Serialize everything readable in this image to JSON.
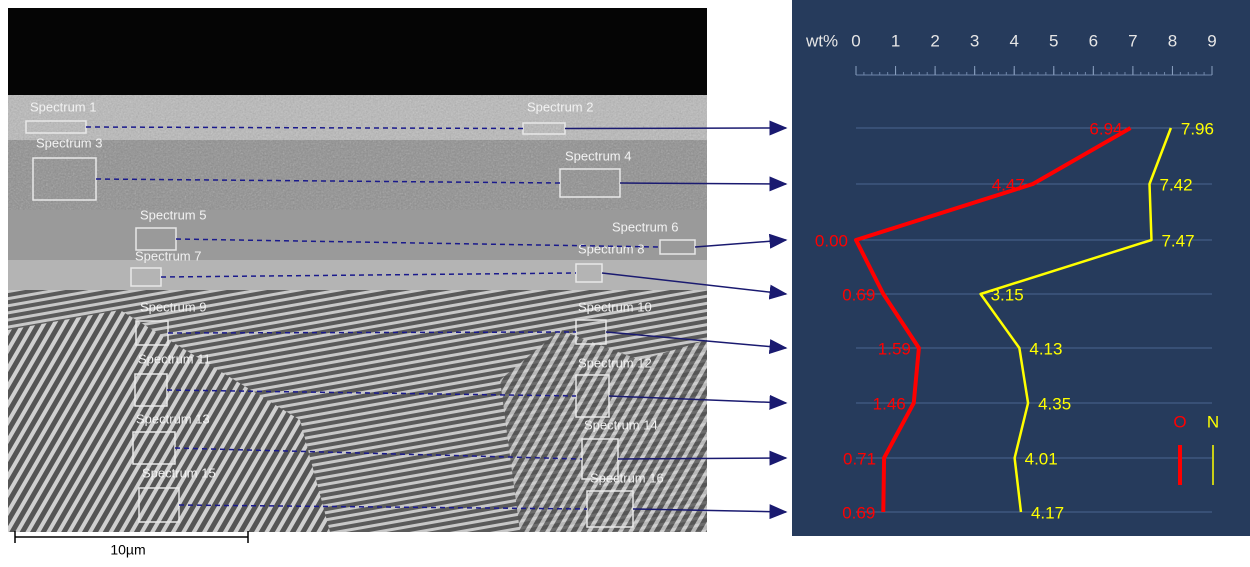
{
  "image": {
    "spectra": [
      "Spectrum 1",
      "Spectrum 2",
      "Spectrum 3",
      "Spectrum 4",
      "Spectrum 5",
      "Spectrum 6",
      "Spectrum 7",
      "Spectrum 8",
      "Spectrum 9",
      "Spectrum 10",
      "Spectrum 11",
      "Spectrum 12",
      "Spectrum 13",
      "Spectrum 14",
      "Spectrum 15",
      "Spectrum 16"
    ],
    "scale_bar": "10µm"
  },
  "chart_data": {
    "type": "line",
    "xlabel": "wt%",
    "categories": [
      null,
      null,
      null,
      null,
      null,
      null,
      null,
      null
    ],
    "xlim": [
      0,
      9
    ],
    "xticks": [
      0,
      1,
      2,
      3,
      4,
      5,
      6,
      7,
      8,
      9
    ],
    "grid": true,
    "series": [
      {
        "name": "O",
        "color": "#ff0000",
        "values": [
          6.94,
          4.47,
          0,
          0.69,
          1.59,
          1.46,
          0.71,
          0.69
        ],
        "value_labels": [
          "6.94",
          "4.47",
          "0.00",
          "0.69",
          "1.59",
          "1.46",
          "0.71",
          "0.69"
        ]
      },
      {
        "name": "N",
        "color": "#ffff00",
        "values": [
          7.96,
          7.42,
          7.47,
          3.15,
          4.13,
          4.35,
          4.01,
          4.17
        ]
      }
    ]
  }
}
